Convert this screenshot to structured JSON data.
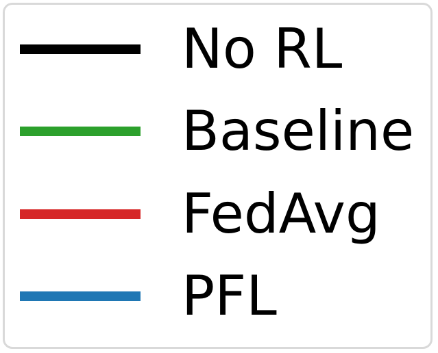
{
  "chart_data": {
    "type": "line",
    "legend_placement": "standalone",
    "series": [
      {
        "name": "No RL",
        "color": "#000000"
      },
      {
        "name": "Baseline",
        "color": "#2ca02c"
      },
      {
        "name": "FedAvg",
        "color": "#d62728"
      },
      {
        "name": "PFL",
        "color": "#1f77b4"
      }
    ]
  }
}
